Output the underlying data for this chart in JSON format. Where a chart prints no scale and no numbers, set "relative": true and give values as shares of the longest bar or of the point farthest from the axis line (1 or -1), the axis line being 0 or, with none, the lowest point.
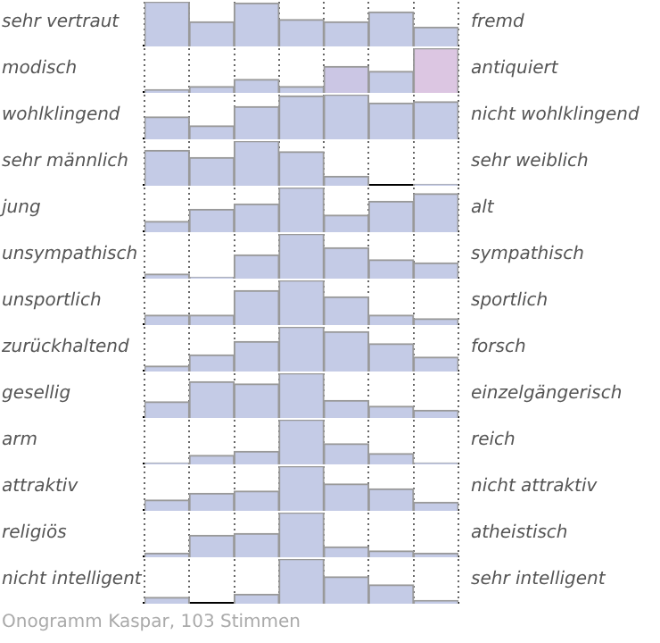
{
  "chart_data": [
    {
      "type": "bar",
      "ylabel": "sehr vertraut",
      "y2label": "fremd",
      "categories": [
        null,
        null,
        null,
        null,
        null,
        null,
        null
      ],
      "values": [
        1,
        0.55,
        0.97,
        0.6,
        0.55,
        0.77,
        0.43
      ],
      "color": "#c4cbe6",
      "relative": true,
      "grid": "x"
    },
    {
      "type": "bar",
      "ylabel": "modisch",
      "y2label": "antiquiert",
      "categories": [
        null,
        null,
        null,
        null,
        null,
        null,
        null
      ],
      "values": [
        0.07,
        0.14,
        0.3,
        0.14,
        0.59,
        0.48,
        1
      ],
      "colors": [
        "#c4cbe6",
        "#c4cbe6",
        "#c4cbe6",
        "#c4cbe6",
        "#cbc6e4",
        "#c4cbe6",
        "#dcc6e2"
      ],
      "relative": true,
      "grid": "x"
    },
    {
      "type": "bar",
      "ylabel": "wohlklingend",
      "y2label": "nicht wohlklingend",
      "categories": [
        null,
        null,
        null,
        null,
        null,
        null,
        null
      ],
      "values": [
        0.5,
        0.3,
        0.73,
        0.97,
        1,
        0.81,
        0.84
      ],
      "color": "#c4cbe6",
      "relative": true,
      "grid": "x"
    },
    {
      "type": "bar",
      "ylabel": "sehr männlich",
      "y2label": "sehr weiblich",
      "categories": [
        null,
        null,
        null,
        null,
        null,
        null,
        null
      ],
      "values": [
        0.79,
        0.63,
        1,
        0.76,
        0.21,
        0,
        0.03
      ],
      "color": "#c4cbe6",
      "relative": true,
      "grid": "x"
    },
    {
      "type": "bar",
      "ylabel": "jung",
      "y2label": "alt",
      "categories": [
        null,
        null,
        null,
        null,
        null,
        null,
        null
      ],
      "values": [
        0.24,
        0.51,
        0.63,
        1,
        0.38,
        0.69,
        0.86
      ],
      "color": "#c4cbe6",
      "relative": true,
      "grid": "x"
    },
    {
      "type": "bar",
      "ylabel": "unsympathisch",
      "y2label": "sympathisch",
      "categories": [
        null,
        null,
        null,
        null,
        null,
        null,
        null
      ],
      "values": [
        0.1,
        0.03,
        0.53,
        1,
        0.69,
        0.42,
        0.35
      ],
      "color": "#c4cbe6",
      "relative": true,
      "grid": "x"
    },
    {
      "type": "bar",
      "ylabel": "unsportlich",
      "y2label": "sportlich",
      "categories": [
        null,
        null,
        null,
        null,
        null,
        null,
        null
      ],
      "values": [
        0.22,
        0.22,
        0.77,
        1,
        0.63,
        0.22,
        0.14
      ],
      "color": "#c4cbe6",
      "relative": true,
      "grid": "x"
    },
    {
      "type": "bar",
      "ylabel": "zurückhaltend",
      "y2label": "forsch",
      "categories": [
        null,
        null,
        null,
        null,
        null,
        null,
        null
      ],
      "values": [
        0.12,
        0.37,
        0.67,
        1,
        0.89,
        0.62,
        0.32
      ],
      "color": "#c4cbe6",
      "relative": true,
      "grid": "x"
    },
    {
      "type": "bar",
      "ylabel": "gesellig",
      "y2label": "einzelgängerisch",
      "categories": [
        null,
        null,
        null,
        null,
        null,
        null,
        null
      ],
      "values": [
        0.36,
        0.81,
        0.76,
        1,
        0.39,
        0.26,
        0.17
      ],
      "color": "#c4cbe6",
      "relative": true,
      "grid": "x"
    },
    {
      "type": "bar",
      "ylabel": "arm",
      "y2label": "reich",
      "categories": [
        null,
        null,
        null,
        null,
        null,
        null,
        null
      ],
      "values": [
        0.03,
        0.2,
        0.29,
        1,
        0.46,
        0.24,
        0.03
      ],
      "color": "#c4cbe6",
      "relative": true,
      "grid": "x"
    },
    {
      "type": "bar",
      "ylabel": "attraktiv",
      "y2label": "nicht attraktiv",
      "categories": [
        null,
        null,
        null,
        null,
        null,
        null,
        null
      ],
      "values": [
        0.24,
        0.39,
        0.44,
        1,
        0.6,
        0.49,
        0.19
      ],
      "color": "#c4cbe6",
      "relative": true,
      "grid": "x"
    },
    {
      "type": "bar",
      "ylabel": "religiös",
      "y2label": "atheistisch",
      "categories": [
        null,
        null,
        null,
        null,
        null,
        null,
        null
      ],
      "values": [
        0.09,
        0.49,
        0.53,
        1,
        0.23,
        0.14,
        0.09
      ],
      "color": "#c4cbe6",
      "relative": true,
      "grid": "x"
    },
    {
      "type": "bar",
      "ylabel": "nicht intelligent",
      "y2label": "sehr intelligent",
      "categories": [
        null,
        null,
        null,
        null,
        null,
        null,
        null
      ],
      "values": [
        0.14,
        0,
        0.21,
        1,
        0.6,
        0.42,
        0.07
      ],
      "color": "#c4cbe6",
      "relative": true,
      "grid": "x",
      "annotations": [
        "Onogramm Kaspar, 103 Stimmen"
      ]
    }
  ]
}
